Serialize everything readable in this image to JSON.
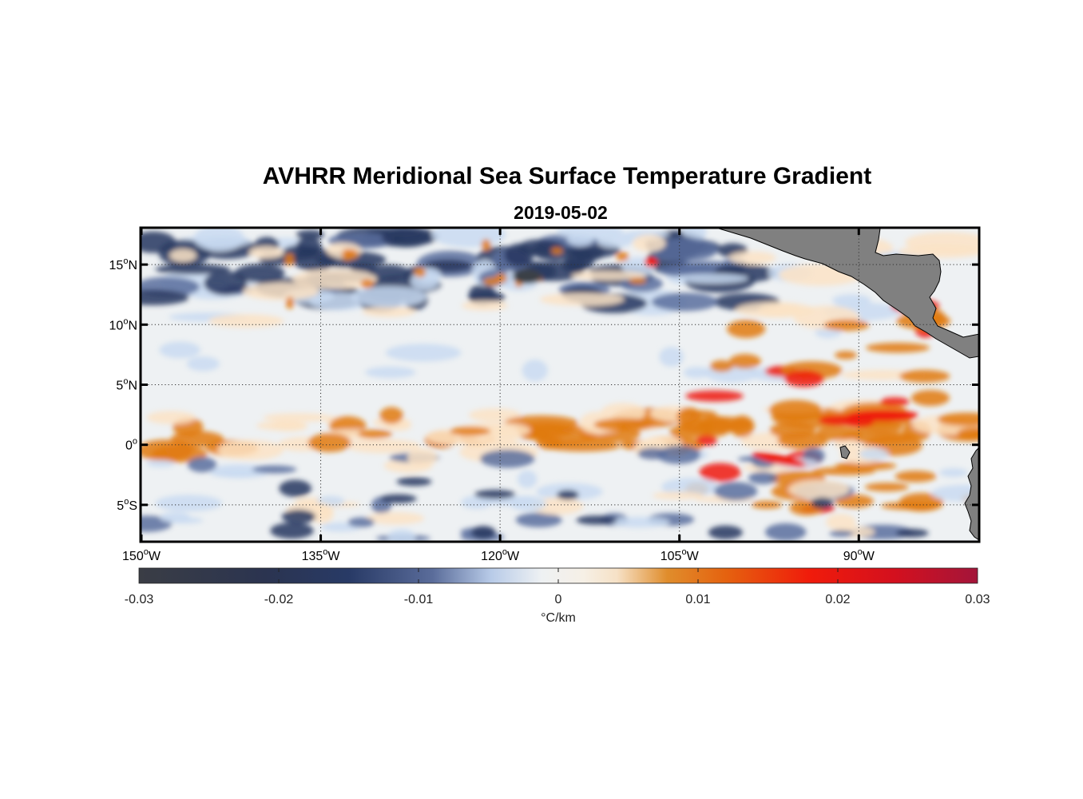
{
  "title": "AVHRR Meridional Sea Surface Temperature Gradient",
  "subtitle": "2019-05-02",
  "map": {
    "lon_range": [
      -150,
      -80
    ],
    "lat_range": [
      -8,
      18
    ],
    "lon_ticks": [
      {
        "value": -150,
        "deg": "150",
        "hemi": "W"
      },
      {
        "value": -135,
        "deg": "135",
        "hemi": "W"
      },
      {
        "value": -120,
        "deg": "120",
        "hemi": "W"
      },
      {
        "value": -105,
        "deg": "105",
        "hemi": "W"
      },
      {
        "value": -90,
        "deg": "90",
        "hemi": "W"
      }
    ],
    "lat_ticks": [
      {
        "value": 15,
        "deg": "15",
        "hemi": "N"
      },
      {
        "value": 10,
        "deg": "10",
        "hemi": "N"
      },
      {
        "value": 5,
        "deg": "5",
        "hemi": "N"
      },
      {
        "value": 0,
        "deg": "0",
        "hemi": ""
      },
      {
        "value": -5,
        "deg": "5",
        "hemi": "S"
      }
    ],
    "grid": "dotted",
    "land_color": "#808080",
    "palette": [
      "#3a3f47",
      "#27375f",
      "#5a6f9e",
      "#c9dbf1",
      "#f2f2ee",
      "#fbe3c6",
      "#e07a10",
      "#ee1a0a",
      "#a3153a"
    ]
  },
  "colorbar": {
    "ticks": [
      "-0.03",
      "-0.02",
      "-0.01",
      "0",
      "0.01",
      "0.02",
      "0.03"
    ],
    "tick_values": [
      -0.03,
      -0.02,
      -0.01,
      0,
      0.01,
      0.02,
      0.03
    ],
    "unit": "°C/km"
  }
}
